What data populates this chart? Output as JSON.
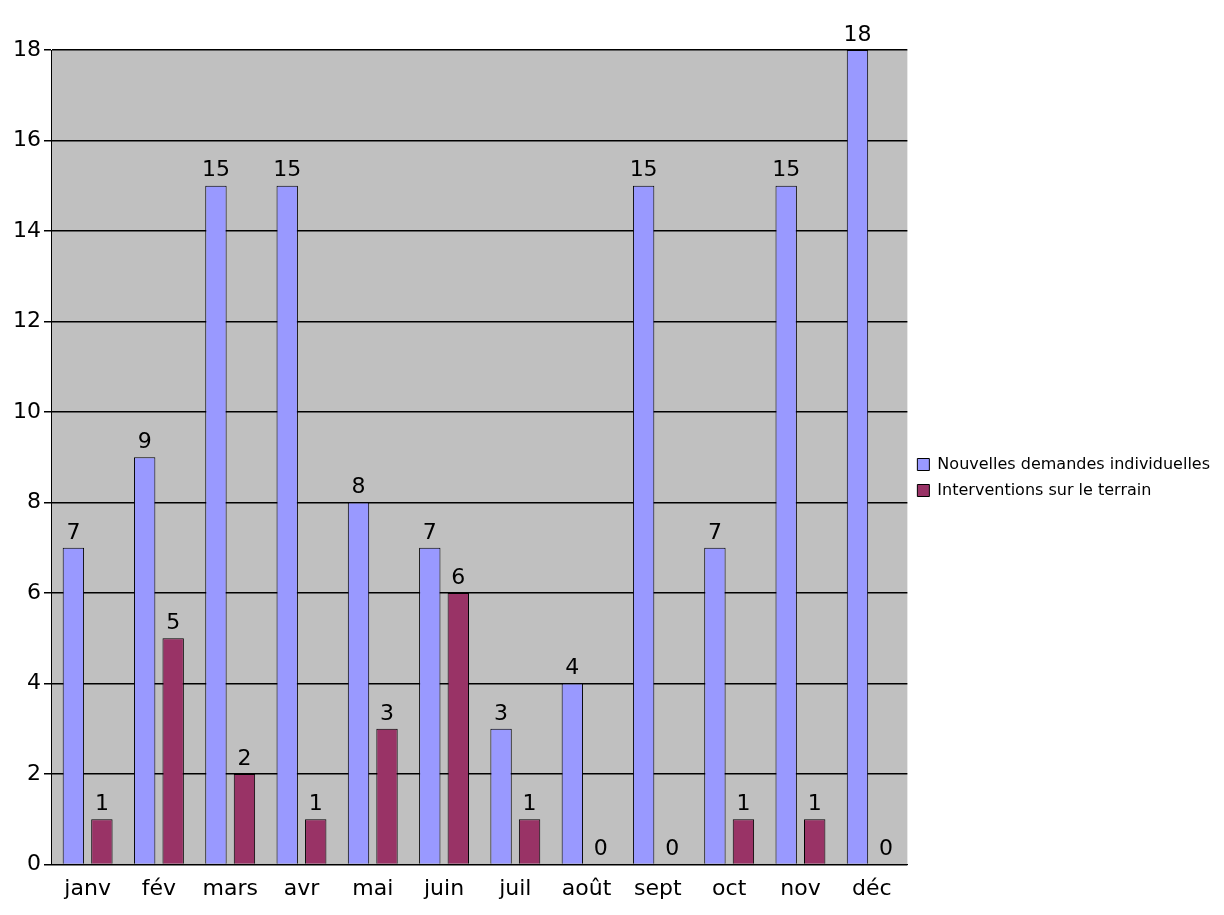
{
  "chart_data": {
    "type": "bar",
    "categories": [
      "janv",
      "fév",
      "mars",
      "avr",
      "mai",
      "juin",
      "juil",
      "août",
      "sept",
      "oct",
      "nov",
      "déc"
    ],
    "series": [
      {
        "name": "Nouvelles demandes individuelles",
        "color": "#9999ff",
        "values": [
          7,
          9,
          15,
          15,
          8,
          7,
          3,
          4,
          15,
          7,
          15,
          18
        ]
      },
      {
        "name": "Interventions sur le terrain",
        "color": "#993366",
        "values": [
          1,
          5,
          2,
          1,
          3,
          6,
          1,
          0,
          0,
          1,
          1,
          0
        ]
      }
    ],
    "ylim": [
      0,
      18
    ],
    "yticks": [
      0,
      2,
      4,
      6,
      8,
      10,
      12,
      14,
      16,
      18
    ],
    "grid": "y",
    "legend": "right",
    "data_labels": true
  }
}
